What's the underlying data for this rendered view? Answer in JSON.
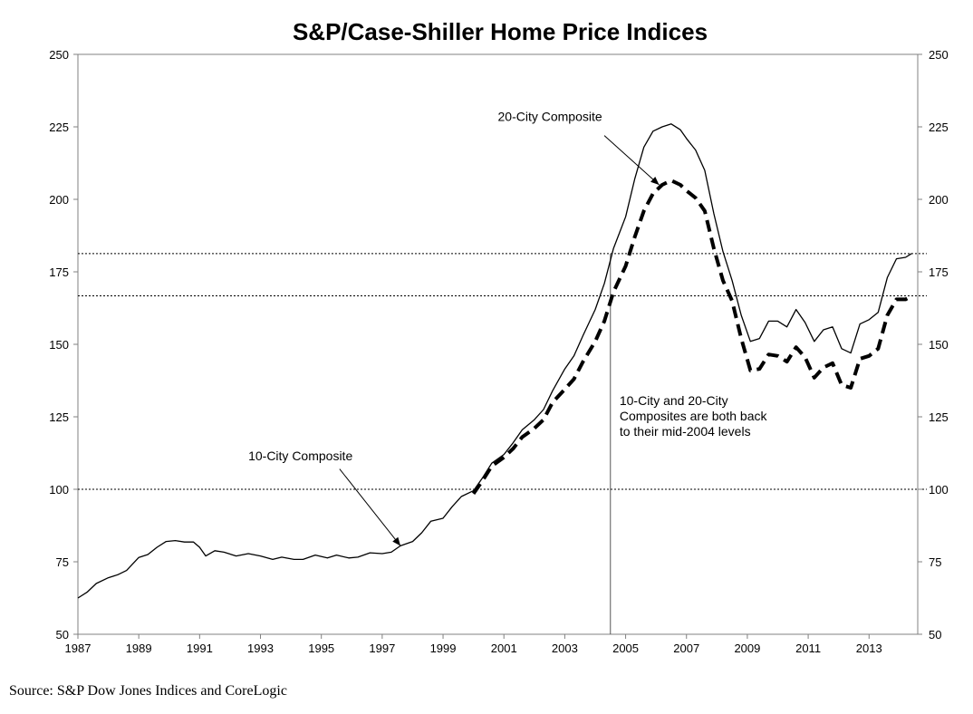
{
  "chart_data": {
    "type": "line",
    "title": "S&P/Case-Shiller Home Price Indices",
    "source": "Source: S&P Dow Jones Indices and CoreLogic",
    "xlim": [
      1987,
      2014.6
    ],
    "ylim": [
      50,
      250
    ],
    "x_ticks": [
      1987,
      1989,
      1991,
      1993,
      1995,
      1997,
      1999,
      2001,
      2003,
      2005,
      2007,
      2009,
      2011,
      2013
    ],
    "x_tick_labels": [
      "1987",
      "1989",
      "1991",
      "1993",
      "1995",
      "1997",
      "1999",
      "2001",
      "2003",
      "2005",
      "2007",
      "2009",
      "2011",
      "2013"
    ],
    "y_ticks": [
      50,
      75,
      100,
      125,
      150,
      175,
      200,
      225,
      250
    ],
    "y_tick_labels": [
      "50",
      "75",
      "100",
      "125",
      "150",
      "175",
      "200",
      "225",
      "250"
    ],
    "y_axis_sides": [
      "left",
      "right"
    ],
    "reference_lines_y": [
      100,
      166.7,
      181.3
    ],
    "reference_line_x": 2004.5,
    "series": [
      {
        "name": "10-City Composite",
        "style": "solid",
        "color": "#000000",
        "points": [
          [
            1987.0,
            62.5
          ],
          [
            1987.3,
            64.5
          ],
          [
            1987.6,
            67.5
          ],
          [
            1988.0,
            69.5
          ],
          [
            1988.3,
            70.5
          ],
          [
            1988.6,
            72.0
          ],
          [
            1989.0,
            76.5
          ],
          [
            1989.3,
            77.5
          ],
          [
            1989.6,
            80.0
          ],
          [
            1989.9,
            82.0
          ],
          [
            1990.2,
            82.3
          ],
          [
            1990.5,
            81.8
          ],
          [
            1990.8,
            81.8
          ],
          [
            1991.0,
            80.0
          ],
          [
            1991.2,
            77.0
          ],
          [
            1991.5,
            78.8
          ],
          [
            1991.8,
            78.3
          ],
          [
            1992.2,
            77.0
          ],
          [
            1992.6,
            77.8
          ],
          [
            1993.0,
            77.0
          ],
          [
            1993.4,
            75.8
          ],
          [
            1993.7,
            76.6
          ],
          [
            1994.1,
            75.8
          ],
          [
            1994.4,
            75.8
          ],
          [
            1994.8,
            77.3
          ],
          [
            1995.2,
            76.3
          ],
          [
            1995.5,
            77.3
          ],
          [
            1995.9,
            76.3
          ],
          [
            1996.2,
            76.6
          ],
          [
            1996.6,
            78.1
          ],
          [
            1997.0,
            77.8
          ],
          [
            1997.3,
            78.3
          ],
          [
            1997.6,
            80.5
          ],
          [
            1998.0,
            82.0
          ],
          [
            1998.3,
            85.0
          ],
          [
            1998.6,
            89.0
          ],
          [
            1999.0,
            90.0
          ],
          [
            1999.3,
            94.0
          ],
          [
            1999.6,
            97.5
          ],
          [
            2000.0,
            99.5
          ],
          [
            2000.3,
            104.0
          ],
          [
            2000.6,
            109.0
          ],
          [
            2001.0,
            112.0
          ],
          [
            2001.3,
            116.0
          ],
          [
            2001.6,
            120.5
          ],
          [
            2002.0,
            124.0
          ],
          [
            2002.3,
            127.5
          ],
          [
            2002.6,
            134.0
          ],
          [
            2003.0,
            141.5
          ],
          [
            2003.3,
            146.0
          ],
          [
            2003.6,
            153.0
          ],
          [
            2004.0,
            162.0
          ],
          [
            2004.3,
            171.0
          ],
          [
            2004.6,
            183.0
          ],
          [
            2005.0,
            194.0
          ],
          [
            2005.3,
            207.0
          ],
          [
            2005.6,
            218.0
          ],
          [
            2005.9,
            223.5
          ],
          [
            2006.2,
            225.0
          ],
          [
            2006.5,
            226.0
          ],
          [
            2006.8,
            224.0
          ],
          [
            2007.0,
            221.0
          ],
          [
            2007.3,
            217.0
          ],
          [
            2007.6,
            210.0
          ],
          [
            2007.9,
            195.0
          ],
          [
            2008.2,
            182.0
          ],
          [
            2008.5,
            172.0
          ],
          [
            2008.8,
            160.0
          ],
          [
            2009.1,
            151.0
          ],
          [
            2009.4,
            152.0
          ],
          [
            2009.7,
            158.0
          ],
          [
            2010.0,
            158.0
          ],
          [
            2010.3,
            156.0
          ],
          [
            2010.6,
            162.0
          ],
          [
            2010.9,
            157.5
          ],
          [
            2011.2,
            151.0
          ],
          [
            2011.5,
            155.0
          ],
          [
            2011.8,
            156.0
          ],
          [
            2012.1,
            148.5
          ],
          [
            2012.4,
            147.0
          ],
          [
            2012.7,
            157.0
          ],
          [
            2013.0,
            158.5
          ],
          [
            2013.3,
            161.0
          ],
          [
            2013.6,
            173.0
          ],
          [
            2013.9,
            179.5
          ],
          [
            2014.2,
            180.0
          ],
          [
            2014.4,
            181.3
          ]
        ]
      },
      {
        "name": "20-City Composite",
        "style": "dashed",
        "color": "#000000",
        "points": [
          [
            2000.0,
            98.5
          ],
          [
            2000.3,
            103.0
          ],
          [
            2000.6,
            108.0
          ],
          [
            2001.0,
            111.0
          ],
          [
            2001.3,
            114.0
          ],
          [
            2001.6,
            118.0
          ],
          [
            2002.0,
            121.0
          ],
          [
            2002.3,
            124.0
          ],
          [
            2002.6,
            130.0
          ],
          [
            2003.0,
            134.5
          ],
          [
            2003.3,
            138.0
          ],
          [
            2003.6,
            144.0
          ],
          [
            2004.0,
            151.0
          ],
          [
            2004.3,
            158.0
          ],
          [
            2004.6,
            168.0
          ],
          [
            2005.0,
            177.0
          ],
          [
            2005.3,
            187.0
          ],
          [
            2005.6,
            196.0
          ],
          [
            2005.9,
            202.0
          ],
          [
            2006.2,
            205.0
          ],
          [
            2006.5,
            206.5
          ],
          [
            2006.8,
            205.0
          ],
          [
            2007.0,
            203.0
          ],
          [
            2007.3,
            200.5
          ],
          [
            2007.6,
            196.0
          ],
          [
            2007.9,
            183.0
          ],
          [
            2008.2,
            172.0
          ],
          [
            2008.5,
            165.0
          ],
          [
            2008.8,
            152.0
          ],
          [
            2009.1,
            141.0
          ],
          [
            2009.4,
            141.5
          ],
          [
            2009.7,
            146.5
          ],
          [
            2010.0,
            146.0
          ],
          [
            2010.3,
            144.0
          ],
          [
            2010.6,
            149.0
          ],
          [
            2010.9,
            145.5
          ],
          [
            2011.2,
            138.5
          ],
          [
            2011.5,
            142.0
          ],
          [
            2011.8,
            143.5
          ],
          [
            2012.1,
            136.0
          ],
          [
            2012.4,
            135.0
          ],
          [
            2012.7,
            145.0
          ],
          [
            2013.0,
            146.0
          ],
          [
            2013.3,
            148.5
          ],
          [
            2013.6,
            160.0
          ],
          [
            2013.9,
            165.5
          ],
          [
            2014.2,
            165.5
          ],
          [
            2014.4,
            166.7
          ]
        ]
      }
    ],
    "annotations": [
      {
        "text": "20-City Composite",
        "lines": [
          "20-City Composite"
        ],
        "label_pos": [
          2000.8,
          227
        ],
        "arrow_from": [
          2004.3,
          222
        ],
        "arrow_to": [
          2006.1,
          205
        ]
      },
      {
        "text": "10-City Composite",
        "lines": [
          "10-City Composite"
        ],
        "label_pos": [
          1992.6,
          110
        ],
        "arrow_from": [
          1995.6,
          107
        ],
        "arrow_to": [
          1997.6,
          80.5
        ]
      },
      {
        "text": "10-City and 20-City Composites are both back to their mid-2004 levels",
        "lines": [
          "10-City and 20-City",
          "Composites are both back",
          "to their mid-2004 levels"
        ],
        "label_pos": [
          2004.8,
          129
        ]
      }
    ]
  }
}
